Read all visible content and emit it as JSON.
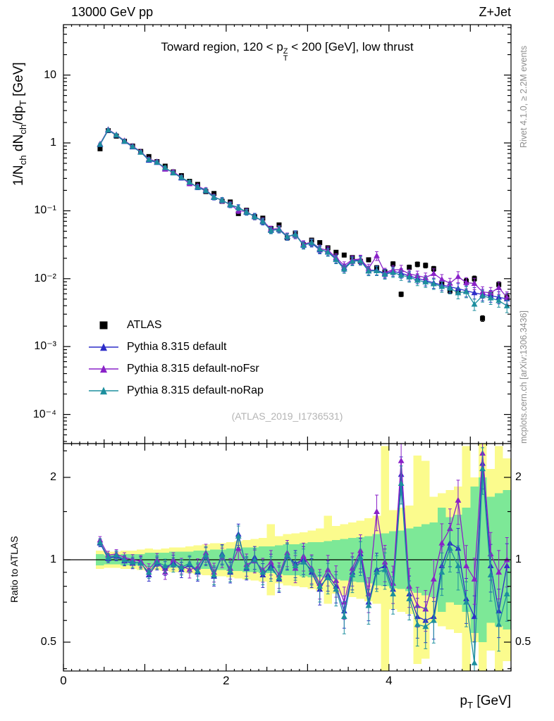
{
  "header": {
    "left": "13000 GeV pp",
    "right": "Z+Jet"
  },
  "panel_title": {
    "pre": "Toward region, 120 < p",
    "sup": "Z",
    "sub": "T",
    "post": " < 200 [GeV], low thrust"
  },
  "side_notes": {
    "top": "Rivet 4.1.0, ≥ 2.2M events",
    "bottom": "mcplots.cern.ch [arXiv:1306.3436]"
  },
  "watermark": "(ATLAS_2019_I1736531)",
  "axes": {
    "main_y_label": {
      "p1": "1/N",
      "s1": "ch",
      "p2": " dN",
      "s2": "ch",
      "p3": "/dp",
      "s3": "T",
      "p4": " [GeV]"
    },
    "ratio_y_label": "Ratio to ATLAS",
    "x_label": {
      "p1": "p",
      "s1": "T",
      "p2": " [GeV]"
    },
    "main_y_ticks": [
      {
        "v": 10,
        "label": "10"
      },
      {
        "v": 1,
        "label": "1"
      },
      {
        "v": 0.1,
        "label": "10⁻¹"
      },
      {
        "v": 0.01,
        "label": "10⁻²"
      },
      {
        "v": 0.001,
        "label": "10⁻³"
      },
      {
        "v": 0.0001,
        "label": "10⁻⁴"
      }
    ],
    "ratio_y_ticks": [
      {
        "v": 0.5,
        "label": "0.5"
      },
      {
        "v": 1,
        "label": "1"
      },
      {
        "v": 2,
        "label": "2"
      }
    ],
    "x_ticks": [
      {
        "v": 0,
        "label": "0"
      },
      {
        "v": 2,
        "label": "2"
      },
      {
        "v": 4,
        "label": "4"
      }
    ],
    "x_range": [
      0,
      5.5
    ],
    "main_y_range": [
      3.2e-05,
      55
    ],
    "ratio_y_range": [
      0.39,
      2.66
    ]
  },
  "legend": {
    "items": [
      {
        "label": "ATLAS",
        "marker": "square",
        "color": "#000000",
        "line": false
      },
      {
        "label": "Pythia 8.315 default",
        "marker": "triangle",
        "color": "#2d2dc8",
        "line": true
      },
      {
        "label": "Pythia 8.315 default-noFsr",
        "marker": "triangle",
        "color": "#8a22c8",
        "line": true
      },
      {
        "label": "Pythia 8.315 default-noRap",
        "marker": "triangle",
        "color": "#1d8f9e",
        "line": true
      }
    ]
  },
  "chart_data": {
    "type": "scatter",
    "title": "Toward region, 120 < pT^Z < 200 [GeV], low thrust",
    "xlabel": "pT [GeV]",
    "ylabel": "1/Nch dNch/dpT [GeV]",
    "ratio_ylabel": "Ratio to ATLAS",
    "yscale": "log",
    "bin_halfwidth": 0.05,
    "x": [
      0.45,
      0.55,
      0.65,
      0.75,
      0.85,
      0.95,
      1.05,
      1.15,
      1.25,
      1.35,
      1.45,
      1.55,
      1.65,
      1.75,
      1.85,
      1.95,
      2.05,
      2.15,
      2.25,
      2.35,
      2.45,
      2.55,
      2.65,
      2.75,
      2.85,
      2.95,
      3.05,
      3.15,
      3.25,
      3.35,
      3.45,
      3.55,
      3.65,
      3.75,
      3.85,
      3.95,
      4.05,
      4.15,
      4.25,
      4.35,
      4.45,
      4.55,
      4.65,
      4.75,
      4.85,
      4.95,
      5.05,
      5.15,
      5.25,
      5.35,
      5.45
    ],
    "atlas": [
      0.82,
      1.52,
      1.26,
      1.06,
      0.9,
      0.75,
      0.63,
      0.53,
      0.455,
      0.375,
      0.33,
      0.272,
      0.245,
      0.192,
      0.18,
      0.138,
      0.135,
      0.091,
      0.102,
      0.082,
      0.078,
      0.055,
      0.062,
      0.04,
      0.047,
      0.0315,
      0.037,
      0.034,
      0.0285,
      0.0245,
      0.0223,
      0.0205,
      0.018,
      0.019,
      0.0145,
      0.0126,
      0.0165,
      0.0059,
      0.0147,
      0.0163,
      0.0157,
      0.014,
      0.0085,
      0.0066,
      0.0065,
      0.0092,
      0.01,
      0.0026,
      0.0059,
      0.0082,
      0.0053
    ],
    "series": [
      {
        "name": "Pythia 8.315 default",
        "color": "#2d2dc8",
        "ratio_to_atlas": [
          1.15,
          1.01,
          1.03,
          0.99,
          0.97,
          0.98,
          0.88,
          0.97,
          0.93,
          0.98,
          0.92,
          0.96,
          0.9,
          1.03,
          0.87,
          1.05,
          0.9,
          1.24,
          0.93,
          1.02,
          0.88,
          0.95,
          0.85,
          1.03,
          0.97,
          1.0,
          0.9,
          0.78,
          0.88,
          0.8,
          0.65,
          0.9,
          1.05,
          0.7,
          0.92,
          0.95,
          0.78,
          2.05,
          0.75,
          0.62,
          0.6,
          0.62,
          0.95,
          1.15,
          1.1,
          0.72,
          0.62,
          2.25,
          0.95,
          0.65,
          0.95
        ]
      },
      {
        "name": "Pythia 8.315 default-noFsr",
        "color": "#8a22c8",
        "ratio_to_atlas": [
          1.18,
          1.04,
          1.05,
          1.02,
          1.0,
          0.99,
          0.92,
          1.0,
          0.9,
          1.0,
          0.95,
          0.92,
          0.94,
          1.06,
          0.9,
          1.02,
          0.93,
          1.1,
          0.96,
          0.99,
          0.92,
          0.98,
          0.88,
          1.06,
          0.93,
          1.03,
          0.93,
          0.82,
          0.92,
          0.84,
          0.7,
          0.93,
          1.08,
          0.75,
          1.5,
          0.98,
          0.82,
          2.3,
          0.8,
          0.68,
          0.66,
          0.85,
          1.15,
          1.3,
          1.65,
          0.95,
          0.85,
          2.45,
          1.05,
          0.9,
          1.0
        ]
      },
      {
        "name": "Pythia 8.315 default-noRap",
        "color": "#1d8f9e",
        "ratio_to_atlas": [
          1.16,
          1.02,
          1.04,
          1.0,
          0.98,
          0.97,
          0.9,
          0.98,
          0.95,
          0.96,
          0.94,
          0.97,
          0.91,
          1.04,
          0.88,
          1.04,
          0.91,
          1.22,
          0.94,
          1.0,
          0.9,
          0.93,
          0.86,
          1.04,
          0.95,
          0.98,
          0.92,
          0.8,
          0.86,
          0.78,
          0.62,
          0.88,
          1.02,
          0.68,
          0.9,
          0.92,
          0.75,
          1.9,
          0.72,
          0.58,
          0.57,
          0.6,
          0.9,
          1.1,
          0.95,
          0.7,
          0.42,
          2.15,
          0.88,
          0.58,
          0.75
        ]
      }
    ],
    "err_frac": [
      0.03,
      0.033,
      0.037,
      0.04,
      0.044,
      0.047,
      0.051,
      0.054,
      0.058,
      0.061,
      0.065,
      0.068,
      0.072,
      0.075,
      0.079,
      0.082,
      0.086,
      0.089,
      0.093,
      0.096,
      0.1,
      0.103,
      0.107,
      0.11,
      0.114,
      0.117,
      0.121,
      0.124,
      0.128,
      0.131,
      0.135,
      0.138,
      0.142,
      0.145,
      0.149,
      0.152,
      0.156,
      0.159,
      0.163,
      0.166,
      0.17,
      0.173,
      0.177,
      0.18,
      0.184,
      0.187,
      0.191,
      0.194,
      0.198,
      0.201,
      0.205
    ],
    "bands": {
      "green_color": "#7de897",
      "yellow_color": "#fbfb8d",
      "green_factor": [
        1.05,
        1.04,
        1.04,
        1.05,
        1.05,
        1.05,
        1.06,
        1.06,
        1.06,
        1.07,
        1.07,
        1.07,
        1.08,
        1.08,
        1.09,
        1.09,
        1.1,
        1.1,
        1.11,
        1.11,
        1.12,
        1.12,
        1.13,
        1.14,
        1.14,
        1.15,
        1.16,
        1.16,
        1.17,
        1.18,
        1.19,
        1.2,
        1.21,
        1.22,
        1.24,
        1.25,
        1.27,
        1.28,
        1.3,
        1.32,
        1.35,
        1.37,
        1.55,
        1.43,
        1.46,
        1.55,
        1.85,
        2.0,
        1.7,
        1.75,
        1.8
      ],
      "yellow_factor": [
        1.08,
        1.07,
        1.07,
        1.08,
        1.08,
        1.09,
        1.1,
        1.09,
        1.1,
        1.11,
        1.11,
        1.12,
        1.13,
        1.14,
        1.15,
        1.15,
        1.16,
        1.17,
        1.18,
        1.19,
        1.2,
        1.35,
        1.22,
        1.24,
        1.25,
        1.26,
        1.28,
        1.3,
        1.45,
        1.33,
        1.35,
        1.37,
        1.39,
        1.42,
        1.45,
        2.6,
        1.52,
        1.55,
        1.58,
        2.4,
        2.3,
        1.7,
        1.75,
        1.8,
        1.85,
        2.6,
        2.0,
        2.7,
        2.15,
        2.6,
        2.35
      ]
    }
  }
}
